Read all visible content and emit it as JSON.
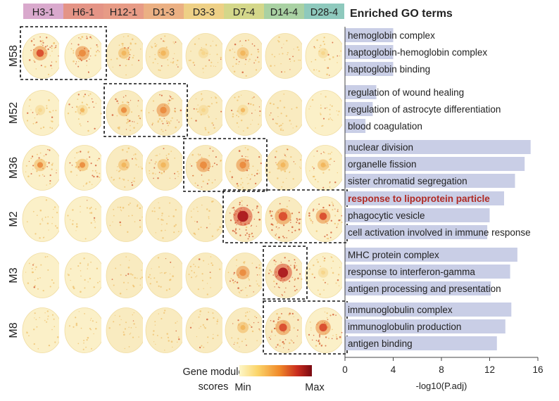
{
  "chart_data": {
    "type": "bar",
    "title": "Enriched GO terms",
    "timepoints": [
      {
        "label": "H3-1",
        "color": "#d9a9cd"
      },
      {
        "label": "H6-1",
        "color": "#e49486"
      },
      {
        "label": "H12-1",
        "color": "#e79b86"
      },
      {
        "label": "D1-3",
        "color": "#ebb083"
      },
      {
        "label": "D3-3",
        "color": "#eed086"
      },
      {
        "label": "D7-4",
        "color": "#d4d78a"
      },
      {
        "label": "D14-4",
        "color": "#a9d1a3"
      },
      {
        "label": "D28-4",
        "color": "#8ec9bd"
      }
    ],
    "modules": [
      {
        "name": "M58",
        "highlight": [
          0,
          1
        ],
        "intensity": [
          0.55,
          0.5,
          0.25,
          0.3,
          0.15,
          0.3,
          0.12,
          0.15
        ],
        "terms": [
          {
            "term": "hemoglobin complex",
            "value": 4.0
          },
          {
            "term": "haptoglobin-hemoglobin complex",
            "value": 4.0
          },
          {
            "term": "haptoglobin binding",
            "value": 4.0
          }
        ]
      },
      {
        "name": "M52",
        "highlight": [
          2,
          3
        ],
        "intensity": [
          0.15,
          0.2,
          0.35,
          0.45,
          0.15,
          0.2,
          0.12,
          0.1
        ],
        "terms": [
          {
            "term": "regulation of wound healing",
            "value": 2.6
          },
          {
            "term": "regulation of astrocyte differentiation",
            "value": 2.3
          },
          {
            "term": "blood coagulation",
            "value": 1.7
          }
        ]
      },
      {
        "name": "M36",
        "highlight": [
          4,
          5
        ],
        "intensity": [
          0.35,
          0.35,
          0.25,
          0.3,
          0.5,
          0.45,
          0.25,
          0.25
        ],
        "terms": [
          {
            "term": "nuclear division",
            "value": 15.4
          },
          {
            "term": "organelle fission",
            "value": 14.9
          },
          {
            "term": "sister chromatid segregation",
            "value": 14.1
          }
        ]
      },
      {
        "name": "M2",
        "highlight": [
          5,
          6,
          7
        ],
        "intensity": [
          0.05,
          0.05,
          0.05,
          0.05,
          0.1,
          0.95,
          0.7,
          0.55
        ],
        "terms": [
          {
            "term": "response to lipoprotein particle",
            "value": 13.2,
            "emphasis": true
          },
          {
            "term": "phagocytic vesicle",
            "value": 12.0
          },
          {
            "term": "cell activation involved in immune response",
            "value": 11.8
          }
        ]
      },
      {
        "name": "M3",
        "highlight": [
          6
        ],
        "intensity": [
          0.05,
          0.05,
          0.05,
          0.05,
          0.1,
          0.45,
          0.85,
          0.15
        ],
        "terms": [
          {
            "term": "MHC protein complex",
            "value": 14.3
          },
          {
            "term": "response to interferon-gamma",
            "value": 13.7
          },
          {
            "term": "antigen processing and presentation",
            "value": 12.1
          }
        ]
      },
      {
        "name": "M8",
        "highlight": [
          6,
          7
        ],
        "intensity": [
          0.05,
          0.05,
          0.05,
          0.05,
          0.1,
          0.25,
          0.6,
          0.6
        ],
        "terms": [
          {
            "term": "immunoglobulin complex",
            "value": 13.8
          },
          {
            "term": "immunoglobulin production",
            "value": 13.3
          },
          {
            "term": "antigen binding",
            "value": 12.6
          }
        ]
      }
    ],
    "xlabel": "-log10(P.adj)",
    "xlim": [
      0,
      16
    ],
    "xticks": [
      0,
      4,
      8,
      12,
      16
    ],
    "legend": {
      "title_line1": "Gene module",
      "title_line2": "scores",
      "min_label": "Min",
      "max_label": "Max",
      "colors": [
        "#fdf6c8",
        "#fbd56a",
        "#f08a2a",
        "#c92c1e",
        "#7a0a12"
      ]
    },
    "colors": {
      "bar": "#c9cee6",
      "emphasis_text": "#b02a24",
      "text": "#222222"
    }
  }
}
